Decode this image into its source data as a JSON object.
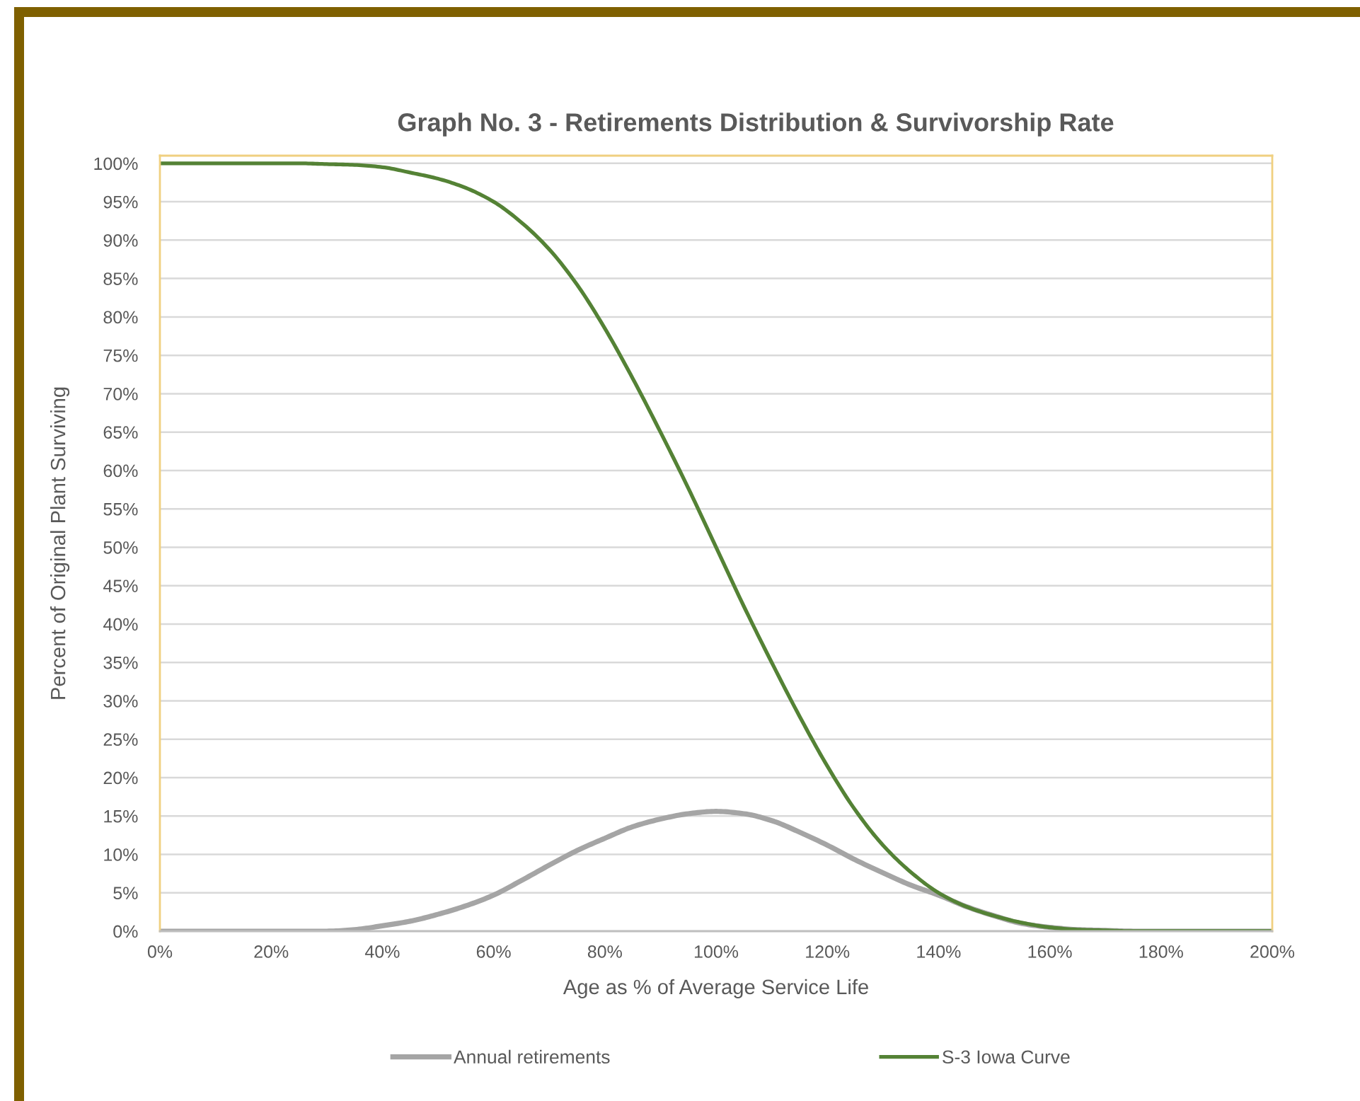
{
  "chart_data": {
    "type": "line",
    "title": "Graph No. 3 - Retirements Distribution & Survivorship Rate",
    "xlabel": "Age as % of Average Service Life",
    "ylabel": "Percent of Original Plant Surviving",
    "x": [
      0,
      5,
      10,
      15,
      20,
      25,
      30,
      35,
      40,
      45,
      50,
      55,
      60,
      65,
      70,
      75,
      80,
      85,
      90,
      95,
      100,
      105,
      110,
      115,
      120,
      125,
      130,
      135,
      140,
      145,
      150,
      155,
      160,
      165,
      170,
      175,
      180,
      185,
      190,
      195,
      200
    ],
    "series": [
      {
        "name": "Annual retirements",
        "color": "#a5a5a5",
        "values": [
          0,
          0,
          0,
          0,
          0,
          0,
          0,
          0.2,
          0.7,
          1.3,
          2.2,
          3.3,
          4.7,
          6.6,
          8.6,
          10.5,
          12.1,
          13.6,
          14.6,
          15.3,
          15.6,
          15.3,
          14.4,
          12.9,
          11.2,
          9.3,
          7.6,
          6.0,
          4.7,
          3.2,
          2.0,
          1.0,
          0.5,
          0.2,
          0.1,
          0,
          0,
          0,
          0,
          0,
          0
        ]
      },
      {
        "name": "S-3 Iowa Curve",
        "color": "#548235",
        "values": [
          100,
          100,
          100,
          100,
          100,
          100,
          99.9,
          99.8,
          99.5,
          98.8,
          98,
          96.8,
          95,
          92.3,
          88.8,
          84.2,
          78.5,
          72,
          65,
          57.7,
          50,
          42.3,
          35,
          28,
          21.5,
          15.8,
          11.2,
          7.7,
          5,
          3.2,
          2,
          1.1,
          0.5,
          0.2,
          0.1,
          0,
          0,
          0,
          0,
          0,
          0
        ]
      }
    ],
    "xlim": [
      0,
      200
    ],
    "xticks": [
      {
        "value": 0,
        "label": "0%"
      },
      {
        "value": 20,
        "label": "20%"
      },
      {
        "value": 40,
        "label": "40%"
      },
      {
        "value": 60,
        "label": "60%"
      },
      {
        "value": 80,
        "label": "80%"
      },
      {
        "value": 100,
        "label": "100%"
      },
      {
        "value": 120,
        "label": "120%"
      },
      {
        "value": 140,
        "label": "140%"
      },
      {
        "value": 160,
        "label": "160%"
      },
      {
        "value": 180,
        "label": "180%"
      },
      {
        "value": 200,
        "label": "200%"
      }
    ],
    "ylim": [
      0,
      101
    ],
    "yticks": [
      {
        "value": 0,
        "label": "0%"
      },
      {
        "value": 5,
        "label": "5%"
      },
      {
        "value": 10,
        "label": "10%"
      },
      {
        "value": 15,
        "label": "15%"
      },
      {
        "value": 20,
        "label": "20%"
      },
      {
        "value": 25,
        "label": "25%"
      },
      {
        "value": 30,
        "label": "30%"
      },
      {
        "value": 35,
        "label": "35%"
      },
      {
        "value": 40,
        "label": "40%"
      },
      {
        "value": 45,
        "label": "45%"
      },
      {
        "value": 50,
        "label": "50%"
      },
      {
        "value": 55,
        "label": "55%"
      },
      {
        "value": 60,
        "label": "60%"
      },
      {
        "value": 65,
        "label": "65%"
      },
      {
        "value": 70,
        "label": "70%"
      },
      {
        "value": 75,
        "label": "75%"
      },
      {
        "value": 80,
        "label": "80%"
      },
      {
        "value": 85,
        "label": "85%"
      },
      {
        "value": 90,
        "label": "90%"
      },
      {
        "value": 95,
        "label": "95%"
      },
      {
        "value": 100,
        "label": "100%"
      }
    ],
    "grid": "y",
    "legend": "bottom"
  }
}
